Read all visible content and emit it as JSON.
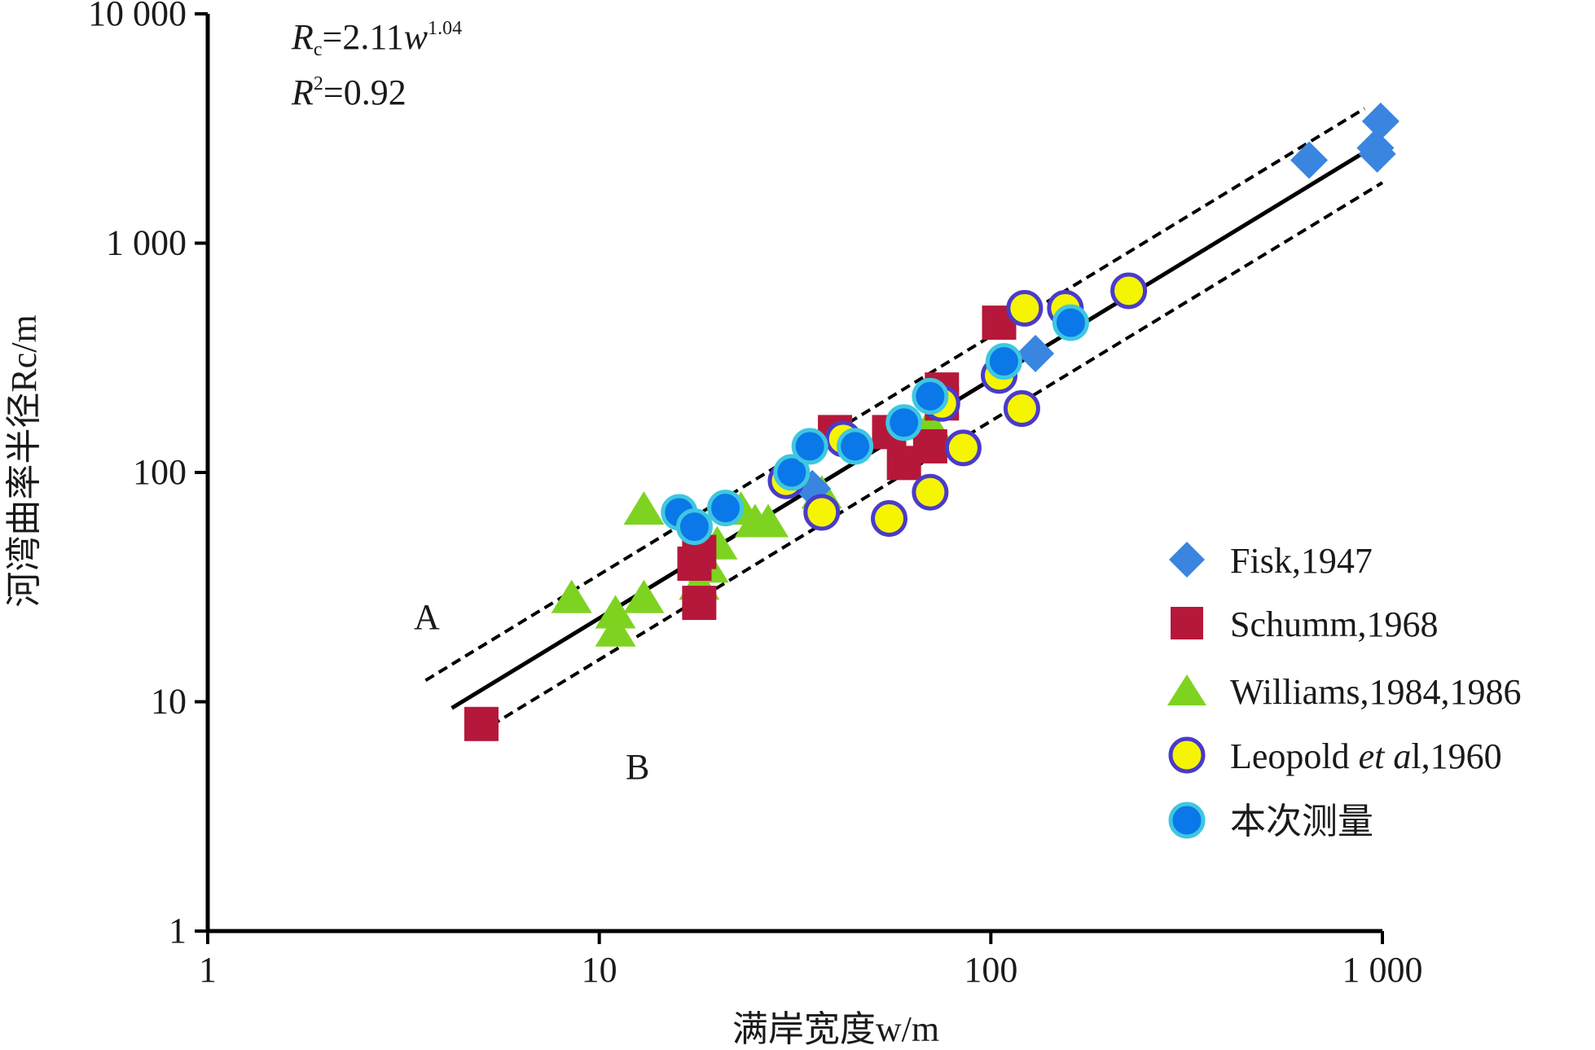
{
  "chart_data": {
    "type": "scatter",
    "scale": "log-log",
    "xlabel": "满岸宽度w/m",
    "ylabel": "河湾曲率半径Rc/m",
    "xlim": [
      1,
      1000
    ],
    "ylim": [
      1,
      10000
    ],
    "x_ticks": [
      {
        "value": 1,
        "label": "1"
      },
      {
        "value": 10,
        "label": "10"
      },
      {
        "value": 100,
        "label": "100"
      },
      {
        "value": 1000,
        "label": "1 000"
      }
    ],
    "y_ticks": [
      {
        "value": 1,
        "label": "1"
      },
      {
        "value": 10,
        "label": "10"
      },
      {
        "value": 100,
        "label": "100"
      },
      {
        "value": 1000,
        "label": "1 000"
      },
      {
        "value": 10000,
        "label": "10 000"
      }
    ],
    "equation": {
      "line1_prefix": "R",
      "line1_sub": "c",
      "line1_mid": "=2.11",
      "line1_var": "w",
      "line1_exp": "1.04",
      "line2_prefix": "R",
      "line2_exp": "2",
      "line2_rest": "=0.92"
    },
    "fit": {
      "a": 2.11,
      "b": 1.04,
      "x_range": [
        4.2,
        950
      ],
      "label": "fit"
    },
    "bounds": [
      {
        "name": "A",
        "factor": 1.55,
        "x_range": [
          3.6,
          900
        ],
        "label": "A"
      },
      {
        "name": "B",
        "factor": 0.66,
        "x_range": [
          4.9,
          1000
        ],
        "label": "B"
      }
    ],
    "series": [
      {
        "name": "Fisk,1947",
        "legend_label": "Fisk,1947",
        "marker": "diamond",
        "fill": "#3a85e0",
        "stroke": "#3a85e0",
        "points": [
          [
            650,
            2300
          ],
          [
            970,
            2450
          ],
          [
            990,
            3400
          ],
          [
            960,
            2600
          ],
          [
            130,
            330
          ],
          [
            35,
            85
          ]
        ]
      },
      {
        "name": "Schumm,1968",
        "legend_label": "Schumm,1968",
        "marker": "square",
        "fill": "#b5183a",
        "stroke": "#b5183a",
        "points": [
          [
            5,
            8
          ],
          [
            18,
            27
          ],
          [
            17.5,
            40
          ],
          [
            18,
            45
          ],
          [
            40,
            150
          ],
          [
            55,
            150
          ],
          [
            60,
            110
          ],
          [
            70,
            130
          ],
          [
            75,
            230
          ],
          [
            75,
            200
          ],
          [
            105,
            450
          ]
        ]
      },
      {
        "name": "Williams,1984,1986",
        "legend_label": "Williams,1984,1986",
        "marker": "triangle",
        "fill": "#7ed321",
        "stroke": "#7ed321",
        "points": [
          [
            8.5,
            28
          ],
          [
            11,
            24
          ],
          [
            11,
            20
          ],
          [
            13,
            28
          ],
          [
            13,
            68
          ],
          [
            18,
            32
          ],
          [
            19,
            38
          ],
          [
            20,
            48
          ],
          [
            23,
            68
          ],
          [
            25,
            60
          ],
          [
            27,
            60
          ],
          [
            70,
            160
          ],
          [
            37,
            80
          ]
        ]
      },
      {
        "name": "Leopold et al,1960",
        "legend_label_a": "Leopold ",
        "legend_label_b": "et a",
        "legend_label_c": "l,1960",
        "marker": "circle",
        "fill": "#f5f500",
        "stroke": "#4a3bc9",
        "points": [
          [
            30,
            92
          ],
          [
            37,
            67
          ],
          [
            42,
            140
          ],
          [
            55,
            63
          ],
          [
            70,
            82
          ],
          [
            75,
            200
          ],
          [
            85,
            128
          ],
          [
            105,
            265
          ],
          [
            120,
            190
          ],
          [
            122,
            520
          ],
          [
            155,
            520
          ],
          [
            225,
            620
          ]
        ]
      },
      {
        "name": "本次测量",
        "legend_label": "本次测量",
        "marker": "circle",
        "fill": "#0a78e8",
        "stroke": "#3ec7e0",
        "points": [
          [
            16,
            67
          ],
          [
            17.5,
            58
          ],
          [
            21,
            70
          ],
          [
            31,
            100
          ],
          [
            34.5,
            130
          ],
          [
            45,
            130
          ],
          [
            60,
            165
          ],
          [
            70,
            215
          ],
          [
            108,
            305
          ],
          [
            160,
            450
          ]
        ]
      }
    ]
  }
}
